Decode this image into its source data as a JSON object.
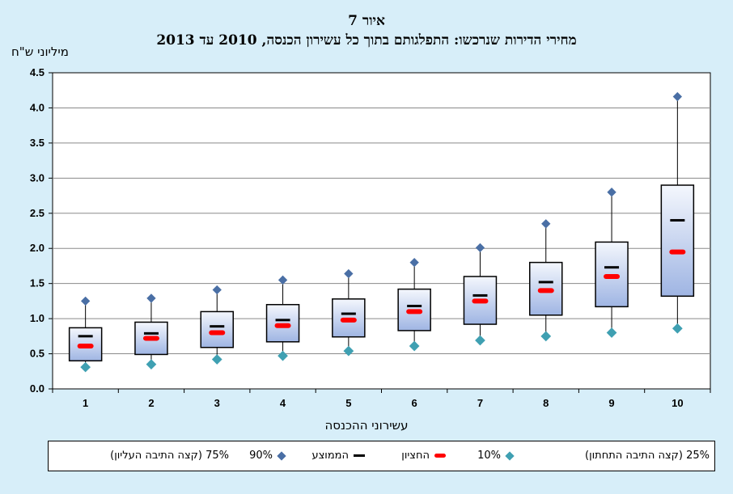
{
  "figure": {
    "title_line1": "איור 7",
    "title_line2": "מחירי הדירות שנרכשו: התפלגותם בתוך כל עשירון הכנסה, 2010 עד 2013",
    "y_unit": "מיליוני ש\"ח",
    "x_title": "עשירוני ההכנסה"
  },
  "legend": {
    "p75": "75% (קצה התיבה העליון)",
    "p90": "90%",
    "mean": "הממוצע",
    "median": "החציון",
    "p10": "10%",
    "p25": "25% (קצה התיבה התחתון)"
  },
  "colors": {
    "p90": "#4a6fa5",
    "p10": "#3fa0b2",
    "mean": "#000000",
    "median": "#ff0000",
    "box_top": "#f4f7fd",
    "box_bottom": "#9fb5e3"
  },
  "chart_data": {
    "type": "box",
    "categories": [
      "1",
      "2",
      "3",
      "4",
      "5",
      "6",
      "7",
      "8",
      "9",
      "10"
    ],
    "yticks": [
      "0.0",
      "0.5",
      "1.0",
      "1.5",
      "2.0",
      "2.5",
      "3.0",
      "3.5",
      "4.0",
      "4.5"
    ],
    "ylim": [
      0,
      4.5
    ],
    "grid": true,
    "series": [
      {
        "name": "10%",
        "values": [
          0.31,
          0.35,
          0.42,
          0.47,
          0.54,
          0.61,
          0.69,
          0.75,
          0.8,
          0.86
        ]
      },
      {
        "name": "25%",
        "values": [
          0.4,
          0.49,
          0.59,
          0.67,
          0.74,
          0.83,
          0.92,
          1.05,
          1.17,
          1.32
        ]
      },
      {
        "name": "החציון",
        "values": [
          0.61,
          0.72,
          0.8,
          0.9,
          0.98,
          1.1,
          1.25,
          1.4,
          1.6,
          1.95
        ]
      },
      {
        "name": "הממוצע",
        "values": [
          0.75,
          0.79,
          0.89,
          0.98,
          1.07,
          1.18,
          1.33,
          1.52,
          1.73,
          2.4
        ]
      },
      {
        "name": "75%",
        "values": [
          0.87,
          0.95,
          1.1,
          1.2,
          1.28,
          1.42,
          1.6,
          1.8,
          2.09,
          2.9
        ]
      },
      {
        "name": "90%",
        "values": [
          1.25,
          1.29,
          1.41,
          1.55,
          1.64,
          1.8,
          2.01,
          2.35,
          2.8,
          4.16
        ]
      }
    ]
  }
}
